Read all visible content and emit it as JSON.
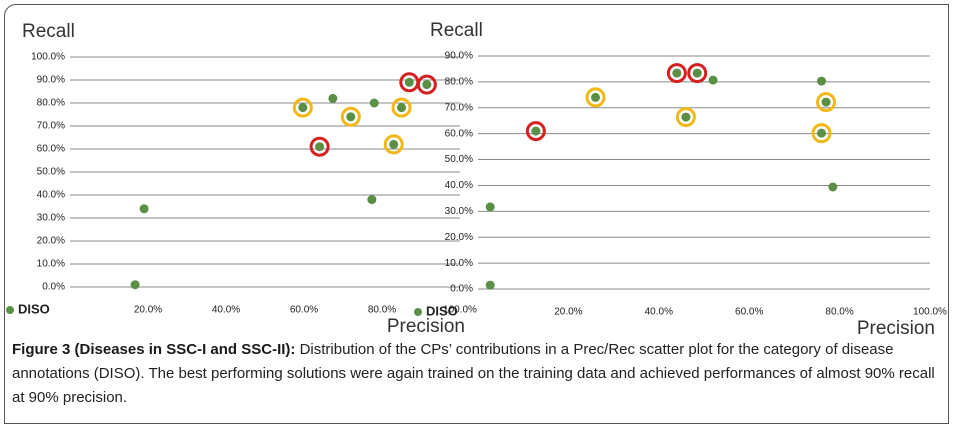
{
  "chart_data": [
    {
      "type": "scatter",
      "y_label": "Recall",
      "x_label": "Precision",
      "series": [
        {
          "name": "DISO",
          "color": "#5b8f45",
          "x": [
            59.7,
            67.4,
            72,
            78,
            85,
            87,
            91.5,
            64,
            83,
            77.4,
            19,
            16.7
          ],
          "values": [
            78,
            82,
            74,
            80,
            78,
            89,
            88,
            61,
            62,
            38,
            34,
            1
          ],
          "rings": [
            "#f2b817",
            null,
            "#f2b817",
            null,
            "#f2b817",
            "#d42020",
            "#d42020",
            "#d42020",
            "#f2b817",
            null,
            null,
            null
          ]
        }
      ],
      "xlim": [
        0,
        100
      ],
      "xticks": [
        {
          "value": 20,
          "label": "20.0%"
        },
        {
          "value": 40,
          "label": "40.0%"
        },
        {
          "value": 60,
          "label": "60.0%"
        },
        {
          "value": 80,
          "label": "80.0%"
        },
        {
          "value": 100,
          "label": "100.0%"
        }
      ],
      "ylim": [
        0,
        100
      ],
      "yticks": [
        {
          "value": 0,
          "label": "0.0%"
        },
        {
          "value": 10,
          "label": "10.0%"
        },
        {
          "value": 20,
          "label": "20.0%"
        },
        {
          "value": 30,
          "label": "30.0%"
        },
        {
          "value": 40,
          "label": "40.0%"
        },
        {
          "value": 50,
          "label": "50.0%"
        },
        {
          "value": 60,
          "label": "60.0%"
        },
        {
          "value": 70,
          "label": "70.0%"
        },
        {
          "value": 80,
          "label": "80.0%"
        },
        {
          "value": 90,
          "label": "90.0%"
        },
        {
          "value": 100,
          "label": "100.0%"
        }
      ],
      "grid": true
    },
    {
      "type": "scatter",
      "y_label": "Recall",
      "x_label": "Precision",
      "series": [
        {
          "name": "DISO",
          "color": "#5b8f45",
          "x": [
            44,
            48.5,
            52,
            26,
            46,
            12.8,
            76,
            77,
            76,
            78.5,
            2.7,
            2.7
          ],
          "values": [
            83.4,
            83.4,
            80.7,
            74,
            66.4,
            61,
            80.3,
            72.2,
            60.2,
            39.4,
            31.7,
            1.5
          ],
          "rings": [
            "#d42020",
            "#d42020",
            null,
            "#f2b817",
            "#f2b817",
            "#d42020",
            null,
            "#f2b817",
            "#f2b817",
            null,
            null,
            null
          ]
        }
      ],
      "xlim": [
        0,
        100
      ],
      "xticks": [
        {
          "value": 20,
          "label": "20.0%"
        },
        {
          "value": 40,
          "label": "40.0%"
        },
        {
          "value": 60,
          "label": "60.0%"
        },
        {
          "value": 80,
          "label": "80.0%"
        },
        {
          "value": 100,
          "label": "100.0%"
        }
      ],
      "ylim": [
        0,
        90
      ],
      "yticks": [
        {
          "value": 0,
          "label": "0.0%"
        },
        {
          "value": 10,
          "label": "10.0%"
        },
        {
          "value": 20,
          "label": "20.0%"
        },
        {
          "value": 30,
          "label": "30.0%"
        },
        {
          "value": 40,
          "label": "40.0%"
        },
        {
          "value": 50,
          "label": "50.0%"
        },
        {
          "value": 60,
          "label": "60.0%"
        },
        {
          "value": 70,
          "label": "70.0%"
        },
        {
          "value": 80,
          "label": "80.0%"
        },
        {
          "value": 90,
          "label": "90.0%"
        }
      ],
      "grid": true
    }
  ],
  "caption": {
    "label": "Figure 3 (Diseases in SSC-I and SSC-II):",
    "text": "Distribution of the CPs’ contributions in a Prec/Rec scatter plot for the category of disease annotations (DISO). The best performing solutions were again trained on the training data and achieved performances of almost 90% recall at 90% precision."
  }
}
